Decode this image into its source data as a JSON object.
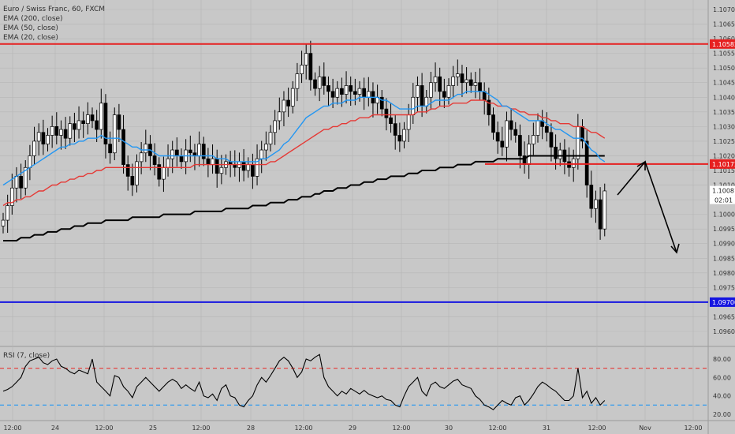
{
  "legend": {
    "title": "Euro / Swiss Franc, 60, FXCM",
    "ema200": "EMA (200, close)",
    "ema50": "EMA (50, close)",
    "ema20": "EMA (20, close)"
  },
  "rsi_legend": "RSI (7, close)",
  "countdown": "02:01",
  "colors": {
    "background": "#c8c8c8",
    "grid": "#b6b6b6",
    "resistance": "#e62020",
    "support": "#1515e0",
    "ema200": "#000000",
    "ema50": "#e53935",
    "ema20": "#2196f3",
    "candle_up": "#ffffff",
    "candle_down": "#000000",
    "rsi_line": "#000000",
    "rsi_upper": "#e53935",
    "rsi_lower": "#2196f3",
    "current_badge": "#ffffff"
  },
  "chart_data": [
    {
      "type": "candlestick",
      "title": "Euro / Swiss Franc, 60, FXCM",
      "ylim": [
        1.0955,
        1.1072
      ],
      "y_ticks": [
        "1.10700",
        "1.10650",
        "1.10600",
        "1.10550",
        "1.10500",
        "1.10450",
        "1.10400",
        "1.10350",
        "1.10300",
        "1.10250",
        "1.10200",
        "1.10150",
        "1.10100",
        "1.10050",
        "1.10000",
        "1.09950",
        "1.09900",
        "1.09850",
        "1.09800",
        "1.09750",
        "1.09700",
        "1.09650",
        "1.09600"
      ],
      "x_ticks": [
        "12:00",
        "24",
        "12:00",
        "25",
        "12:00",
        "28",
        "12:00",
        "29",
        "12:00",
        "30",
        "12:00",
        "31",
        "12:00",
        "Nov",
        "12:00"
      ],
      "closes": [
        1.0998,
        1.1003,
        1.1009,
        1.1013,
        1.1009,
        1.1016,
        1.102,
        1.1025,
        1.1028,
        1.1024,
        1.1027,
        1.103,
        1.1027,
        1.1029,
        1.1026,
        1.1031,
        1.1029,
        1.1032,
        1.1031,
        1.1034,
        1.1032,
        1.1029,
        1.1038,
        1.1024,
        1.1021,
        1.1034,
        1.1029,
        1.1017,
        1.1013,
        1.101,
        1.1018,
        1.1021,
        1.1024,
        1.102,
        1.1017,
        1.1012,
        1.1016,
        1.1019,
        1.1022,
        1.102,
        1.1018,
        1.1022,
        1.1021,
        1.102,
        1.1024,
        1.1019,
        1.1017,
        1.1019,
        1.1014,
        1.1016,
        1.1018,
        1.1017,
        1.1016,
        1.1018,
        1.1015,
        1.1017,
        1.1013,
        1.1019,
        1.1022,
        1.1024,
        1.1028,
        1.1032,
        1.1035,
        1.1039,
        1.1037,
        1.1043,
        1.1048,
        1.1051,
        1.1055,
        1.1046,
        1.1043,
        1.1047,
        1.1044,
        1.1042,
        1.104,
        1.1043,
        1.1041,
        1.1044,
        1.1042,
        1.1041,
        1.1043,
        1.104,
        1.1042,
        1.1038,
        1.104,
        1.1036,
        1.1033,
        1.1031,
        1.1027,
        1.1025,
        1.1029,
        1.1034,
        1.104,
        1.1044,
        1.1037,
        1.104,
        1.1045,
        1.1047,
        1.1042,
        1.104,
        1.1044,
        1.1047,
        1.1048,
        1.1045,
        1.1046,
        1.1044,
        1.1045,
        1.1042,
        1.1039,
        1.1034,
        1.1028,
        1.1025,
        1.1023,
        1.1032,
        1.1029,
        1.1027,
        1.102,
        1.1017,
        1.1024,
        1.1027,
        1.1032,
        1.103,
        1.1028,
        1.1023,
        1.1019,
        1.1022,
        1.1018,
        1.1016,
        1.1019,
        1.103,
        1.1025,
        1.101,
        1.1002,
        1.1005,
        1.0995,
        1.1008
      ],
      "ema20": [
        1.101,
        1.1011,
        1.1012,
        1.1013,
        1.1014,
        1.1015,
        1.1016,
        1.1017,
        1.1018,
        1.1019,
        1.102,
        1.1021,
        1.1022,
        1.1023,
        1.1023,
        1.1024,
        1.1024,
        1.1025,
        1.1025,
        1.1026,
        1.1026,
        1.1026,
        1.1027,
        1.1026,
        1.1026,
        1.1026,
        1.1026,
        1.1025,
        1.1024,
        1.1023,
        1.1023,
        1.1022,
        1.1022,
        1.1022,
        1.1021,
        1.102,
        1.102,
        1.102,
        1.102,
        1.102,
        1.102,
        1.102,
        1.102,
        1.102,
        1.102,
        1.102,
        1.102,
        1.102,
        1.1019,
        1.1019,
        1.1019,
        1.1018,
        1.1018,
        1.1018,
        1.1018,
        1.1018,
        1.1018,
        1.1018,
        1.1019,
        1.1019,
        1.102,
        1.1021,
        1.1022,
        1.1024,
        1.1025,
        1.1027,
        1.1029,
        1.1031,
        1.1033,
        1.1034,
        1.1035,
        1.1036,
        1.1037,
        1.1037,
        1.1038,
        1.1038,
        1.1038,
        1.1039,
        1.1039,
        1.1039,
        1.104,
        1.104,
        1.104,
        1.104,
        1.104,
        1.1039,
        1.1039,
        1.1038,
        1.1037,
        1.1036,
        1.1036,
        1.1036,
        1.1036,
        1.1037,
        1.1037,
        1.1037,
        1.1038,
        1.1039,
        1.1039,
        1.1039,
        1.1039,
        1.104,
        1.1041,
        1.1041,
        1.1042,
        1.1042,
        1.1042,
        1.1042,
        1.1042,
        1.1041,
        1.104,
        1.1039,
        1.1037,
        1.1037,
        1.1036,
        1.1035,
        1.1034,
        1.1033,
        1.1032,
        1.1032,
        1.1032,
        1.1032,
        1.1031,
        1.103,
        1.1029,
        1.1029,
        1.1028,
        1.1027,
        1.1026,
        1.1026,
        1.1026,
        1.1024,
        1.1022,
        1.1021,
        1.1019,
        1.1018
      ],
      "ema50": [
        1.1003,
        1.1004,
        1.1004,
        1.1005,
        1.1005,
        1.1006,
        1.1006,
        1.1007,
        1.1008,
        1.1008,
        1.1009,
        1.101,
        1.101,
        1.1011,
        1.1011,
        1.1012,
        1.1012,
        1.1013,
        1.1013,
        1.1014,
        1.1014,
        1.1015,
        1.1015,
        1.1016,
        1.1016,
        1.1016,
        1.1016,
        1.1016,
        1.1016,
        1.1016,
        1.1016,
        1.1016,
        1.1016,
        1.1016,
        1.1016,
        1.1016,
        1.1016,
        1.1016,
        1.1016,
        1.1016,
        1.1016,
        1.1016,
        1.1016,
        1.1017,
        1.1017,
        1.1017,
        1.1017,
        1.1017,
        1.1017,
        1.1017,
        1.1017,
        1.1017,
        1.1017,
        1.1017,
        1.1017,
        1.1017,
        1.1017,
        1.1017,
        1.1017,
        1.1017,
        1.1018,
        1.1018,
        1.1019,
        1.102,
        1.1021,
        1.1022,
        1.1023,
        1.1024,
        1.1025,
        1.1026,
        1.1027,
        1.1028,
        1.1029,
        1.1029,
        1.103,
        1.103,
        1.1031,
        1.1031,
        1.1032,
        1.1032,
        1.1033,
        1.1033,
        1.1033,
        1.1034,
        1.1034,
        1.1034,
        1.1034,
        1.1034,
        1.1034,
        1.1034,
        1.1034,
        1.1034,
        1.1034,
        1.1035,
        1.1035,
        1.1035,
        1.1036,
        1.1036,
        1.1037,
        1.1037,
        1.1037,
        1.1038,
        1.1038,
        1.1038,
        1.1038,
        1.1039,
        1.1039,
        1.1039,
        1.1039,
        1.1038,
        1.1038,
        1.1037,
        1.1037,
        1.1037,
        1.1036,
        1.1036,
        1.1035,
        1.1035,
        1.1034,
        1.1034,
        1.1034,
        1.1033,
        1.1033,
        1.1032,
        1.1032,
        1.1031,
        1.1031,
        1.1031,
        1.103,
        1.103,
        1.103,
        1.1029,
        1.1028,
        1.1028,
        1.1027,
        1.1026
      ],
      "ema200": [
        1.0991,
        1.0991,
        1.0991,
        1.0991,
        1.0992,
        1.0992,
        1.0992,
        1.0993,
        1.0993,
        1.0993,
        1.0994,
        1.0994,
        1.0994,
        1.0995,
        1.0995,
        1.0995,
        1.0996,
        1.0996,
        1.0996,
        1.0997,
        1.0997,
        1.0997,
        1.0997,
        1.0998,
        1.0998,
        1.0998,
        1.0998,
        1.0998,
        1.0998,
        1.0999,
        1.0999,
        1.0999,
        1.0999,
        1.0999,
        1.0999,
        1.0999,
        1.1,
        1.1,
        1.1,
        1.1,
        1.1,
        1.1,
        1.1,
        1.1001,
        1.1001,
        1.1001,
        1.1001,
        1.1001,
        1.1001,
        1.1001,
        1.1002,
        1.1002,
        1.1002,
        1.1002,
        1.1002,
        1.1002,
        1.1003,
        1.1003,
        1.1003,
        1.1003,
        1.1004,
        1.1004,
        1.1004,
        1.1004,
        1.1005,
        1.1005,
        1.1005,
        1.1006,
        1.1006,
        1.1006,
        1.1007,
        1.1007,
        1.1008,
        1.1008,
        1.1008,
        1.1009,
        1.1009,
        1.1009,
        1.101,
        1.101,
        1.101,
        1.1011,
        1.1011,
        1.1011,
        1.1012,
        1.1012,
        1.1012,
        1.1013,
        1.1013,
        1.1013,
        1.1013,
        1.1014,
        1.1014,
        1.1014,
        1.1015,
        1.1015,
        1.1015,
        1.1015,
        1.1016,
        1.1016,
        1.1016,
        1.1016,
        1.1017,
        1.1017,
        1.1017,
        1.1017,
        1.1018,
        1.1018,
        1.1018,
        1.1018,
        1.1018,
        1.1019,
        1.1019,
        1.1019,
        1.1019,
        1.1019,
        1.1019,
        1.1019,
        1.102,
        1.102,
        1.102,
        1.102,
        1.102,
        1.102,
        1.102,
        1.102,
        1.102,
        1.102,
        1.102,
        1.102,
        1.102,
        1.102,
        1.102,
        1.102,
        1.102,
        1.102
      ],
      "levels": [
        {
          "price": "1.10582",
          "color": "#e62020"
        },
        {
          "price": "1.10172",
          "color": "#e62020"
        },
        {
          "price": "1.09700",
          "color": "#1515e0"
        }
      ],
      "current_price": "1.10081"
    },
    {
      "type": "line",
      "title": "RSI (7, close)",
      "ylim": [
        15,
        90
      ],
      "y_ticks": [
        "80.00",
        "60.00",
        "40.00",
        "20.00"
      ],
      "levels": [
        70,
        30
      ],
      "values": [
        45,
        47,
        50,
        55,
        60,
        72,
        78,
        80,
        82,
        76,
        74,
        78,
        80,
        72,
        70,
        66,
        64,
        68,
        66,
        64,
        80,
        55,
        50,
        45,
        40,
        62,
        60,
        50,
        45,
        38,
        50,
        55,
        60,
        55,
        50,
        45,
        50,
        55,
        58,
        55,
        48,
        52,
        48,
        45,
        55,
        40,
        38,
        42,
        35,
        48,
        52,
        40,
        38,
        30,
        28,
        35,
        40,
        52,
        60,
        55,
        62,
        70,
        78,
        82,
        78,
        70,
        60,
        66,
        80,
        78,
        82,
        85,
        60,
        50,
        45,
        40,
        45,
        42,
        48,
        45,
        42,
        46,
        42,
        40,
        38,
        40,
        36,
        35,
        30,
        28,
        40,
        50,
        55,
        60,
        45,
        40,
        52,
        55,
        50,
        48,
        52,
        56,
        58,
        52,
        50,
        48,
        40,
        36,
        30,
        28,
        25,
        30,
        35,
        32,
        30,
        38,
        40,
        30,
        35,
        42,
        50,
        55,
        52,
        48,
        45,
        40,
        35,
        35,
        40,
        70,
        38,
        45,
        32,
        38,
        30,
        35
      ]
    }
  ]
}
